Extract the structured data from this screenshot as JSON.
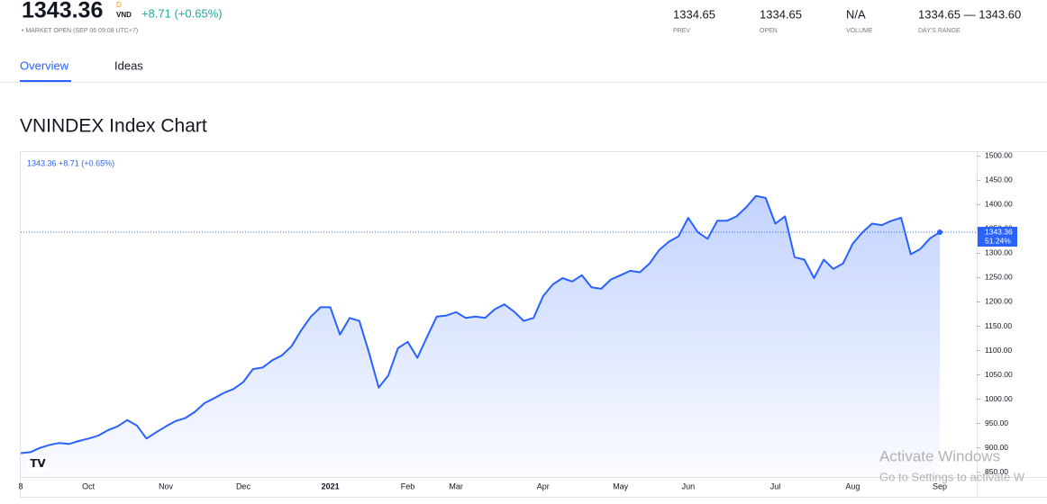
{
  "header": {
    "price": "1343.36",
    "price_flag": "D",
    "currency": "VND",
    "change": "+8.71 (+0.65%)",
    "status": "• MARKET OPEN (SEP 06 09:08 UTC+7)",
    "stats": [
      {
        "value": "1334.65",
        "label": "PREV"
      },
      {
        "value": "1334.65",
        "label": "OPEN"
      },
      {
        "value": "N/A",
        "label": "VOLUME"
      },
      {
        "value": "1334.65 — 1343.60",
        "label": "DAY'S RANGE"
      }
    ]
  },
  "tabs": [
    "Overview",
    "Ideas"
  ],
  "chart_data": {
    "type": "area",
    "title": "VNINDEX Index Chart",
    "legend_text": "1343.36 +8.71 (+0.65%)",
    "last_price_label": "1343.36",
    "last_change_label": "51.24%",
    "color": "#2962ff",
    "categories": [
      "8",
      null,
      null,
      null,
      null,
      null,
      null,
      "Oct",
      null,
      null,
      null,
      null,
      null,
      null,
      null,
      "Nov",
      null,
      null,
      null,
      null,
      null,
      null,
      null,
      "Dec",
      null,
      null,
      null,
      null,
      null,
      null,
      null,
      null,
      "2021",
      null,
      null,
      null,
      null,
      null,
      null,
      null,
      "Feb",
      null,
      null,
      null,
      null,
      "Mar",
      null,
      null,
      null,
      null,
      null,
      null,
      null,
      null,
      "Apr",
      null,
      null,
      null,
      null,
      null,
      null,
      null,
      "May",
      null,
      null,
      null,
      null,
      null,
      null,
      "Jun",
      null,
      null,
      null,
      null,
      null,
      null,
      null,
      null,
      "Jul",
      null,
      null,
      null,
      null,
      null,
      null,
      null,
      "Aug",
      null,
      null,
      null,
      null,
      null,
      null,
      null,
      null,
      "Sep"
    ],
    "values": [
      889,
      891,
      900,
      906,
      910,
      908,
      914,
      919,
      925,
      936,
      944,
      957,
      946,
      919,
      932,
      944,
      955,
      961,
      974,
      992,
      1002,
      1013,
      1021,
      1035,
      1062,
      1065,
      1080,
      1090,
      1109,
      1142,
      1170,
      1189,
      1189,
      1133,
      1167,
      1161,
      1096,
      1024,
      1049,
      1105,
      1118,
      1085,
      1128,
      1170,
      1172,
      1179,
      1167,
      1170,
      1167,
      1185,
      1195,
      1180,
      1161,
      1167,
      1212,
      1236,
      1249,
      1242,
      1255,
      1230,
      1227,
      1246,
      1255,
      1264,
      1261,
      1279,
      1307,
      1324,
      1335,
      1373,
      1343,
      1330,
      1367,
      1367,
      1376,
      1395,
      1418,
      1414,
      1361,
      1376,
      1292,
      1287,
      1249,
      1287,
      1268,
      1279,
      1320,
      1343,
      1361,
      1358,
      1367,
      1373,
      1298,
      1309,
      1331,
      1343.36
    ],
    "ylim": [
      840,
      1510
    ],
    "yticks": [
      {
        "value": 850,
        "label": "850.00"
      },
      {
        "value": 900,
        "label": "900.00"
      },
      {
        "value": 950,
        "label": "950.00"
      },
      {
        "value": 1000,
        "label": "1000.00"
      },
      {
        "value": 1050,
        "label": "1050.00"
      },
      {
        "value": 1100,
        "label": "1100.00"
      },
      {
        "value": 1150,
        "label": "1150.00"
      },
      {
        "value": 1200,
        "label": "1200.00"
      },
      {
        "value": 1250,
        "label": "1250.00"
      },
      {
        "value": 1300,
        "label": "1300.00"
      },
      {
        "value": 1350,
        "label": "1350.00"
      },
      {
        "value": 1400,
        "label": "1400.00"
      },
      {
        "value": 1450,
        "label": "1450.00"
      },
      {
        "value": 1500,
        "label": "1500.00"
      }
    ]
  },
  "watermark": [
    "Activate Windows",
    "Go to Settings to activate W"
  ]
}
